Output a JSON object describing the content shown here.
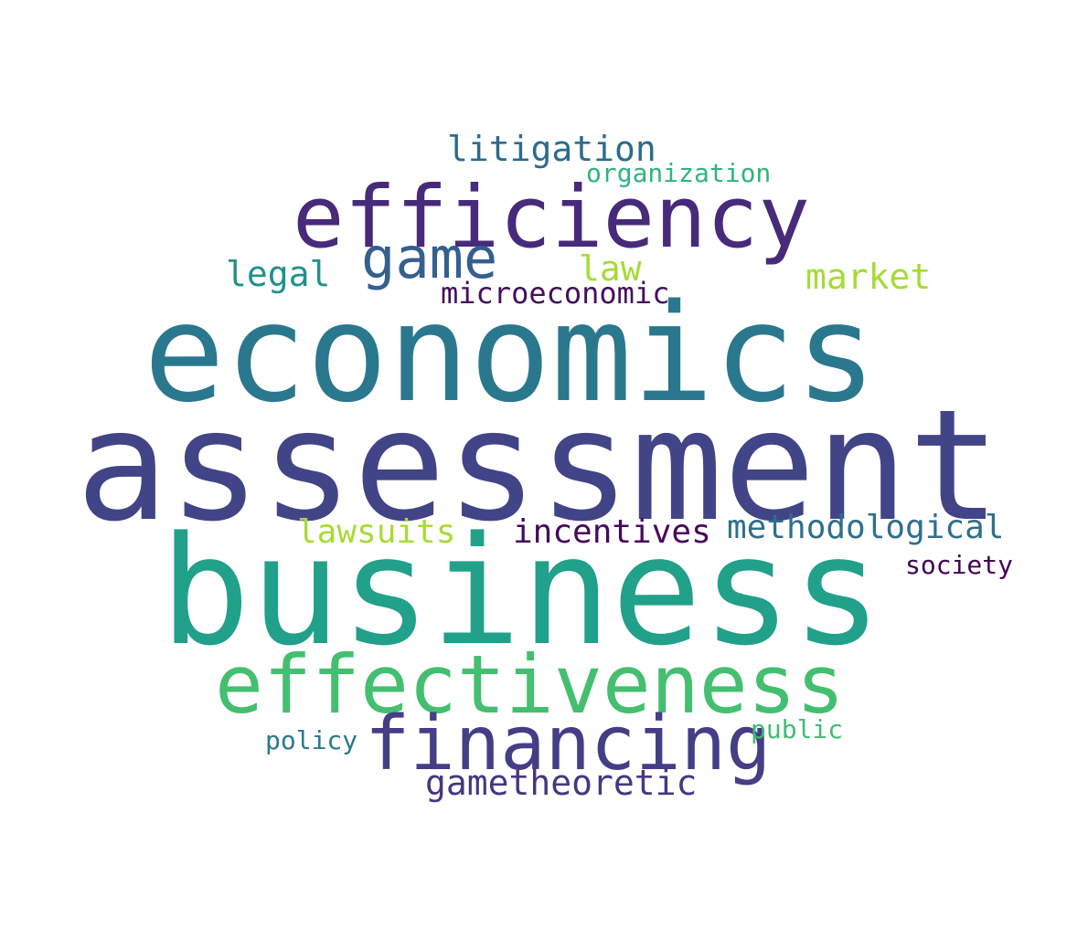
{
  "words": [
    {
      "id": "litigation",
      "text": "litigation",
      "color": "#2c6b8b"
    },
    {
      "id": "organization",
      "text": "organization",
      "color": "#2fb47c"
    },
    {
      "id": "efficiency",
      "text": "efficiency",
      "color": "#472a7a"
    },
    {
      "id": "game",
      "text": "game",
      "color": "#355f8d"
    },
    {
      "id": "legal",
      "text": "legal",
      "color": "#21918c"
    },
    {
      "id": "law",
      "text": "law",
      "color": "#a5db36"
    },
    {
      "id": "market",
      "text": "market",
      "color": "#a5db36"
    },
    {
      "id": "microeconomic",
      "text": "microeconomic",
      "color": "#440f5e"
    },
    {
      "id": "economics",
      "text": "economics",
      "color": "#2a788e"
    },
    {
      "id": "assessment",
      "text": "assessment",
      "color": "#414487"
    },
    {
      "id": "lawsuits",
      "text": "lawsuits",
      "color": "#a8db34"
    },
    {
      "id": "incentives",
      "text": "incentives",
      "color": "#46085c"
    },
    {
      "id": "methodological",
      "text": "methodological",
      "color": "#2f6f8e"
    },
    {
      "id": "society",
      "text": "society",
      "color": "#440154"
    },
    {
      "id": "business",
      "text": "business",
      "color": "#21a08a"
    },
    {
      "id": "effectiveness",
      "text": "effectiveness",
      "color": "#44bf70"
    },
    {
      "id": "financing",
      "text": "financing",
      "color": "#433e85"
    },
    {
      "id": "policy",
      "text": "policy",
      "color": "#2a788e"
    },
    {
      "id": "public",
      "text": "public",
      "color": "#40bd72"
    },
    {
      "id": "gametheoretic",
      "text": "gametheoretic",
      "color": "#453781"
    }
  ]
}
